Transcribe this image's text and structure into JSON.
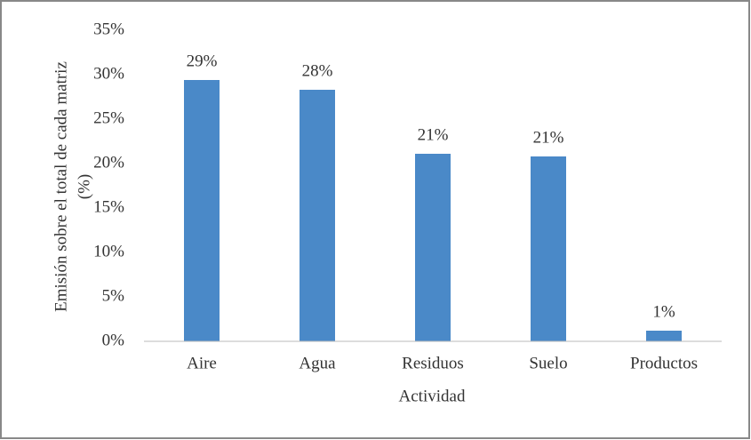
{
  "chart_data": {
    "type": "bar",
    "categories": [
      "Aire",
      "Agua",
      "Residuos",
      "Suelo",
      "Productos"
    ],
    "values": [
      29.4,
      28.3,
      21.1,
      20.8,
      1.2
    ],
    "value_labels": [
      "29%",
      "28%",
      "21%",
      "21%",
      "1%"
    ],
    "color": "#4a89c8",
    "x_label": "Actividad",
    "y_label": [
      "Emisión sobre el total de cada matriz",
      "(%)"
    ],
    "ylim": [
      0,
      35
    ],
    "yticks": [
      {
        "value": 0,
        "label": "0%"
      },
      {
        "value": 5,
        "label": "5%"
      },
      {
        "value": 10,
        "label": "10%"
      },
      {
        "value": 15,
        "label": "15%"
      },
      {
        "value": 20,
        "label": "20%"
      },
      {
        "value": 25,
        "label": "25%"
      },
      {
        "value": 30,
        "label": "30%"
      },
      {
        "value": 35,
        "label": "35%"
      }
    ],
    "grid": false
  }
}
